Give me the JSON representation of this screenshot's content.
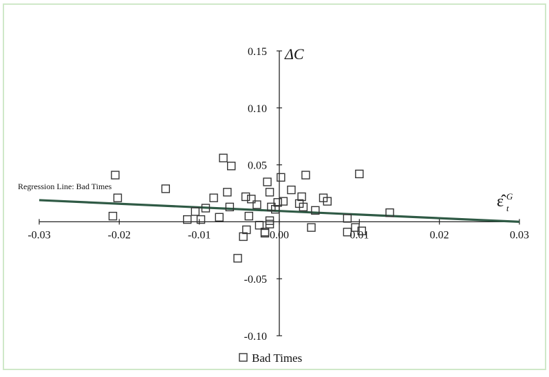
{
  "colors": {
    "background": "#ffffff",
    "border": "#cfe8c8",
    "axis": "#222222",
    "regression_line": "#2f5a45",
    "marker": "#333333"
  },
  "chart_data": {
    "type": "scatter",
    "title": "",
    "xlabel": "ε̂",
    "xlabel_sup": "G",
    "xlabel_sub": "t",
    "ylabel": "ΔC",
    "xlim": [
      -0.03,
      0.03
    ],
    "ylim": [
      -0.1,
      0.15
    ],
    "x_ticks": [
      -0.03,
      -0.02,
      -0.01,
      0.0,
      0.01,
      0.02,
      0.03
    ],
    "x_tick_labels": [
      "-0.03",
      "-0.02",
      "-0.01",
      "0.00",
      "0.01",
      "0.02",
      "0.03"
    ],
    "y_ticks": [
      -0.1,
      -0.05,
      0.05,
      0.1,
      0.15
    ],
    "y_tick_labels": [
      "-0.10",
      "-0.05",
      "0.05",
      "0.10",
      "0.15"
    ],
    "grid": false,
    "axes_cross_at_origin": true,
    "legend": {
      "position": "bottom-center",
      "entries": [
        "Bad Times"
      ]
    },
    "annotations": [
      {
        "text": "Regression Line:  Bad Times",
        "x": -0.0255,
        "y": 0.0295
      }
    ],
    "regression_line": {
      "name": "Regression Line:  Bad Times",
      "x": [
        -0.03,
        0.03
      ],
      "y": [
        0.019,
        0.0
      ]
    },
    "series": [
      {
        "name": "Bad Times",
        "marker": "open-square",
        "x": [
          -0.0205,
          -0.0202,
          -0.0208,
          -0.0142,
          -0.0115,
          -0.0105,
          -0.0098,
          -0.0092,
          -0.0082,
          -0.0075,
          -0.007,
          -0.0065,
          -0.006,
          -0.0062,
          -0.0052,
          -0.0045,
          -0.0038,
          -0.0042,
          -0.0041,
          -0.0035,
          -0.0028,
          -0.0025,
          -0.0018,
          -0.0015,
          -0.0012,
          -0.0018,
          -0.0012,
          -0.001,
          -0.0005,
          -0.0002,
          0.0002,
          0.0005,
          0.0015,
          0.0025,
          0.0028,
          0.003,
          0.0033,
          0.004,
          0.0055,
          0.006,
          0.0085,
          0.0095,
          0.01,
          0.0103,
          0.0138,
          -0.0012,
          0.0045,
          0.0085
        ],
        "y": [
          0.041,
          0.021,
          0.005,
          0.029,
          0.002,
          0.009,
          0.002,
          0.012,
          0.021,
          0.004,
          0.056,
          0.026,
          0.049,
          0.013,
          -0.032,
          -0.013,
          0.005,
          0.022,
          -0.007,
          0.02,
          0.015,
          -0.003,
          -0.009,
          0.035,
          0.026,
          -0.01,
          -0.002,
          0.013,
          0.011,
          0.017,
          0.039,
          0.018,
          0.028,
          0.016,
          0.022,
          0.013,
          0.041,
          -0.005,
          0.021,
          0.018,
          0.003,
          -0.005,
          0.042,
          -0.008,
          0.008,
          0.001,
          0.01,
          -0.009
        ]
      }
    ]
  }
}
